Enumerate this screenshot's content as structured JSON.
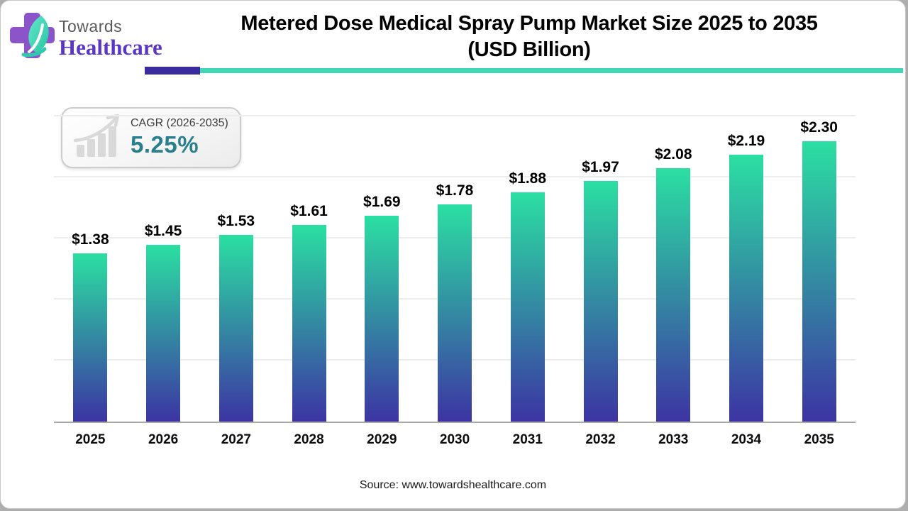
{
  "header": {
    "logo": {
      "brand_top": "Towards",
      "brand_bottom": "Healthcare",
      "icon": "cross-leaf-icon"
    },
    "title_line1": "Metered Dose Medical Spray Pump Market Size 2025 to 2035",
    "title_line2": "(USD Billion)",
    "accent_purple": "#3a2b9e",
    "accent_teal": "#3ed9b4"
  },
  "cagr_badge": {
    "icon": "growth-chart-icon",
    "label": "CAGR (2026-2035)",
    "value": "5.25%",
    "value_color": "#2a7f8d"
  },
  "chart_data": {
    "type": "bar",
    "title": "Metered Dose Medical Spray Pump Market Size 2025 to 2035 (USD Billion)",
    "categories": [
      "2025",
      "2026",
      "2027",
      "2028",
      "2029",
      "2030",
      "2031",
      "2032",
      "2033",
      "2034",
      "2035"
    ],
    "values": [
      1.38,
      1.45,
      1.53,
      1.61,
      1.69,
      1.78,
      1.88,
      1.97,
      2.08,
      2.19,
      2.3
    ],
    "labels": [
      "$1.38",
      "$1.45",
      "$1.53",
      "$1.61",
      "$1.69",
      "$1.78",
      "$1.88",
      "$1.97",
      "$2.08",
      "$2.19",
      "$2.30"
    ],
    "xlabel": "",
    "ylabel": "",
    "ylim": [
      0,
      2.7
    ],
    "gridline_step": 0.5,
    "grid": true,
    "legend": false,
    "bar_gradient_top": "#2bdfa2",
    "bar_gradient_bottom": "#3c34a3",
    "axis_color": "#a9a9a9",
    "gridline_color": "#ececec"
  },
  "footer": {
    "source": "Source: www.towardshealthcare.com"
  }
}
